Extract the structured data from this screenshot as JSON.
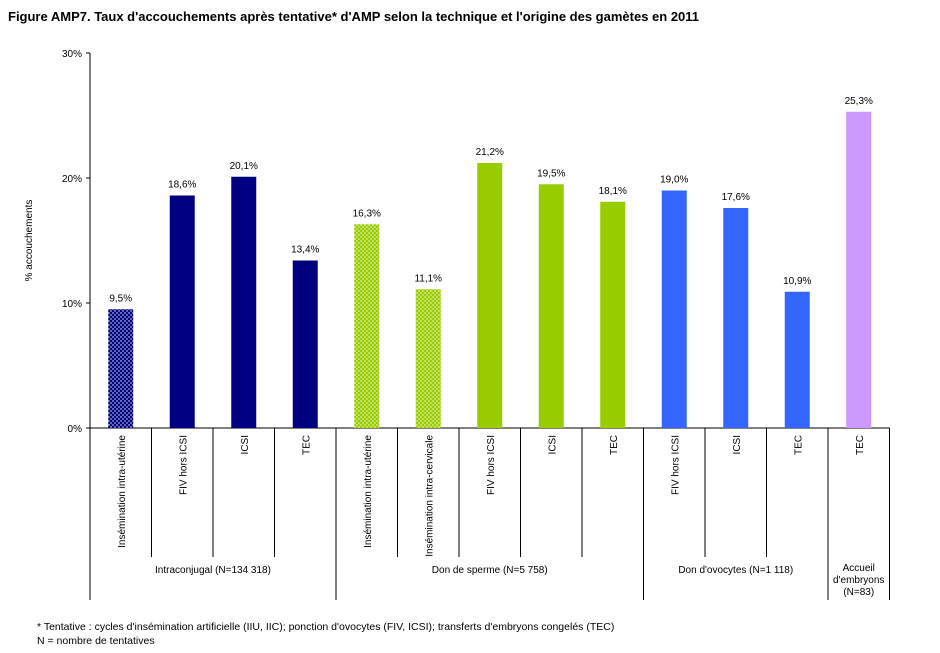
{
  "title": "Figure AMP7. Taux d'accouchements après tentative* d'AMP selon la technique et l'origine des gamètes en 2011",
  "colors": {
    "intraconjugal": "#000080",
    "don_sperme": "#99CC00",
    "don_ovocytes": "#3366FF",
    "accueil": "#CC99FF"
  },
  "chart_data": {
    "type": "bar",
    "ylabel": "% accouchements",
    "ylim": [
      0,
      30
    ],
    "yticks": [
      "0%",
      "10%",
      "20%",
      "30%"
    ],
    "grid": false,
    "categories": [
      "Insémination intra-utérine",
      "FIV hors ICSI",
      "ICSI",
      "TEC",
      "Insémination intra-utérine",
      "Insémination intra-cervicale",
      "FIV hors ICSI",
      "ICSI",
      "TEC",
      "FIV hors ICSI",
      "ICSI",
      "TEC",
      "TEC"
    ],
    "values": [
      9.5,
      18.6,
      20.1,
      13.4,
      16.3,
      11.1,
      21.2,
      19.5,
      18.1,
      19.0,
      17.6,
      10.9,
      25.3
    ],
    "value_labels": [
      "9,5%",
      "18,6%",
      "20,1%",
      "13,4%",
      "16,3%",
      "11,1%",
      "21,2%",
      "19,5%",
      "18,1%",
      "19,0%",
      "17,6%",
      "10,9%",
      "25,3%"
    ],
    "bar_group": [
      "intraconjugal",
      "intraconjugal",
      "intraconjugal",
      "intraconjugal",
      "don_sperme",
      "don_sperme",
      "don_sperme",
      "don_sperme",
      "don_sperme",
      "don_ovocytes",
      "don_ovocytes",
      "don_ovocytes",
      "accueil"
    ],
    "dotted": [
      true,
      false,
      false,
      false,
      true,
      true,
      false,
      false,
      false,
      false,
      false,
      false,
      false
    ],
    "groups": [
      {
        "key": "intraconjugal",
        "label": "Intraconjugal (N=134 318)",
        "count": 4
      },
      {
        "key": "don_sperme",
        "label": "Don de sperme (N=5 758)",
        "count": 5
      },
      {
        "key": "don_ovocytes",
        "label": "Don d'ovocytes (N=1 118)",
        "count": 3
      },
      {
        "key": "accueil",
        "label": "Accueil d'embryons (N=83)",
        "count": 1
      }
    ]
  },
  "footnotes": [
    "* Tentative : cycles d'insémination artificielle (IIU, IIC); ponction d'ovocytes (FIV, ICSI); transferts d'embryons congelés (TEC)",
    "N = nombre de tentatives"
  ]
}
